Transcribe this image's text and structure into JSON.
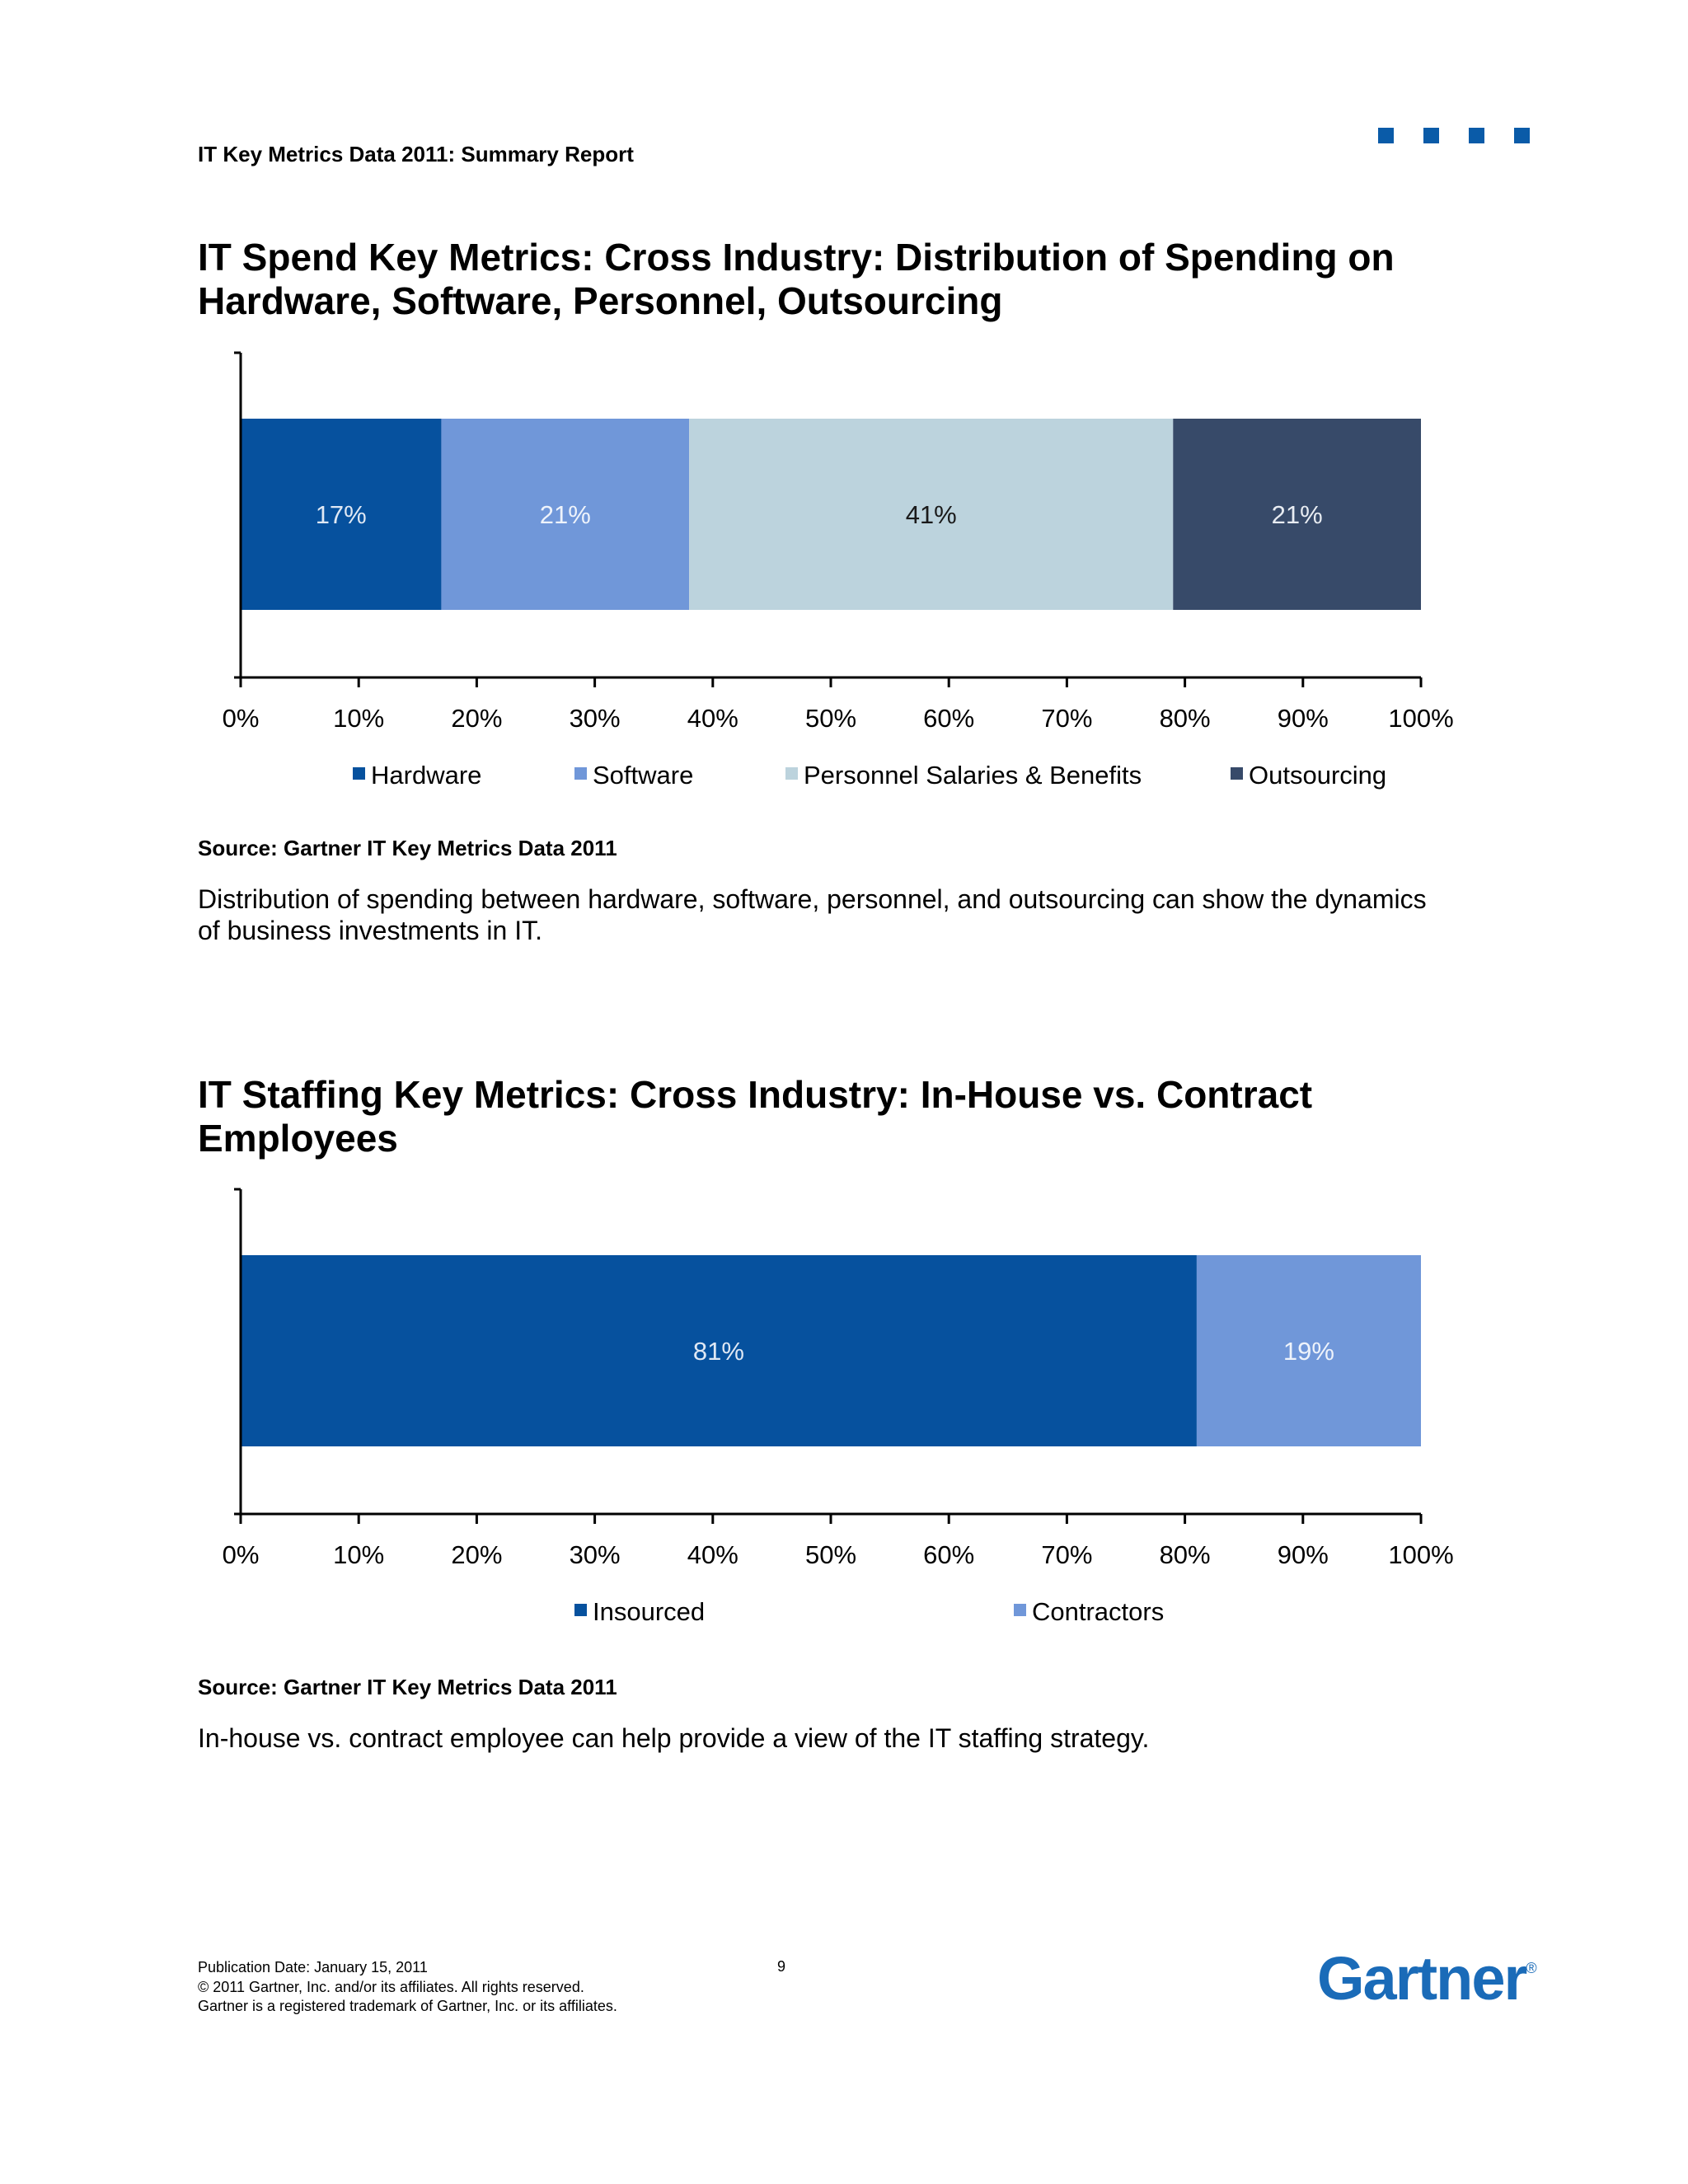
{
  "header": {
    "title": "IT Key Metrics Data 2011: Summary Report",
    "deco_color": "#0a5ba8"
  },
  "sections": [
    {
      "title_line1": "IT Spend Key Metrics: Cross Industry: Distribution of Spending on",
      "title_line2": "Hardware, Software, Personnel, Outsourcing",
      "source": "Source: Gartner IT Key Metrics Data 2011",
      "description_line1": "Distribution of spending between hardware, software, personnel, and outsourcing can show the dynamics",
      "description_line2": "of business investments in IT."
    },
    {
      "title_line1": "IT Staffing Key Metrics: Cross Industry: In-House vs. Contract",
      "title_line2": "Employees",
      "source": "Source: Gartner IT Key Metrics Data 2011",
      "description_line1": "In-house vs. contract employee can help provide a view of the IT staffing strategy.",
      "description_line2": ""
    }
  ],
  "chart_data": [
    {
      "type": "bar",
      "orientation": "horizontal-stacked-100",
      "categories": [
        ""
      ],
      "series": [
        {
          "name": "Hardware",
          "values": [
            17
          ],
          "label": "17%",
          "color": "#06519e",
          "label_color": "#dfe8f4"
        },
        {
          "name": "Software",
          "values": [
            21
          ],
          "label": "21%",
          "color": "#7097d9",
          "label_color": "#eef3fb"
        },
        {
          "name": "Personnel Salaries & Benefits",
          "values": [
            41
          ],
          "label": "41%",
          "color": "#bcd3dd",
          "label_color": "#1a1a1a"
        },
        {
          "name": "Outsourcing",
          "values": [
            21
          ],
          "label": "21%",
          "color": "#374a69",
          "label_color": "#e8ecf2"
        }
      ],
      "xlim": [
        0,
        100
      ],
      "x_ticks": [
        "0%",
        "10%",
        "20%",
        "30%",
        "40%",
        "50%",
        "60%",
        "70%",
        "80%",
        "90%",
        "100%"
      ],
      "legend_position": "bottom",
      "grid": false
    },
    {
      "type": "bar",
      "orientation": "horizontal-stacked-100",
      "categories": [
        ""
      ],
      "series": [
        {
          "name": "Insourced",
          "values": [
            81
          ],
          "label": "81%",
          "color": "#06519e",
          "label_color": "#dfe8f4"
        },
        {
          "name": "Contractors",
          "values": [
            19
          ],
          "label": "19%",
          "color": "#7097d9",
          "label_color": "#eef3fb"
        }
      ],
      "xlim": [
        0,
        100
      ],
      "x_ticks": [
        "0%",
        "10%",
        "20%",
        "30%",
        "40%",
        "50%",
        "60%",
        "70%",
        "80%",
        "90%",
        "100%"
      ],
      "legend_position": "bottom",
      "grid": false
    }
  ],
  "footer": {
    "publication_date": "Publication Date: January 15,  2011",
    "page_number": "9",
    "copyright": "© 2011 Gartner, Inc. and/or its affiliates. All rights reserved.",
    "trademark": "Gartner is a registered trademark of Gartner, Inc. or its affiliates.",
    "logo_text": "Gartner",
    "logo_mark": "®",
    "logo_color": "#1a6bb8"
  }
}
